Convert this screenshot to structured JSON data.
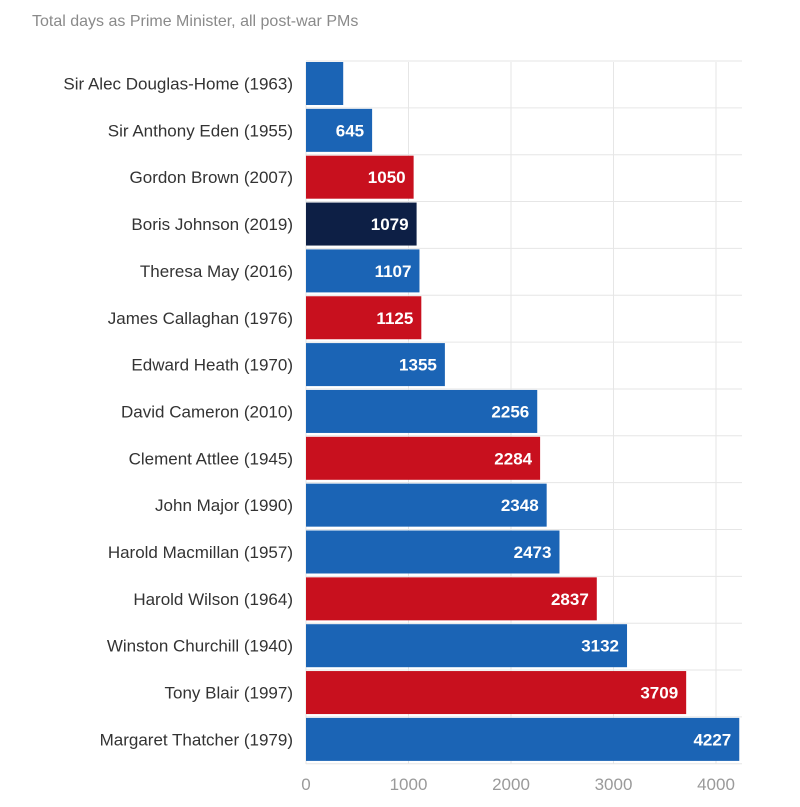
{
  "chart_data": {
    "type": "bar",
    "orientation": "horizontal",
    "title": "",
    "subtitle": "Total days as Prime Minister, all post-war PMs",
    "xlabel": "",
    "ylabel": "",
    "xlim": [
      0,
      4500
    ],
    "xticks": [
      0,
      1000,
      2000,
      3000,
      4000
    ],
    "grid": true,
    "colors": {
      "conservative": "#1b64b5",
      "labour": "#c8101e",
      "current": "#0d1f45"
    },
    "bars": [
      {
        "label": "Sir Alec Douglas-Home (1963)",
        "value": 363,
        "party": "conservative",
        "value_label": ""
      },
      {
        "label": "Sir Anthony Eden (1955)",
        "value": 645,
        "party": "conservative",
        "value_label": "645"
      },
      {
        "label": "Gordon Brown (2007)",
        "value": 1050,
        "party": "labour",
        "value_label": "1050"
      },
      {
        "label": "Boris Johnson (2019)",
        "value": 1079,
        "party": "current",
        "value_label": "1079"
      },
      {
        "label": "Theresa May (2016)",
        "value": 1107,
        "party": "conservative",
        "value_label": "1107"
      },
      {
        "label": "James Callaghan (1976)",
        "value": 1125,
        "party": "labour",
        "value_label": "1125"
      },
      {
        "label": "Edward Heath (1970)",
        "value": 1355,
        "party": "conservative",
        "value_label": "1355"
      },
      {
        "label": "David Cameron (2010)",
        "value": 2256,
        "party": "conservative",
        "value_label": "2256"
      },
      {
        "label": "Clement Attlee (1945)",
        "value": 2284,
        "party": "labour",
        "value_label": "2284"
      },
      {
        "label": "John Major (1990)",
        "value": 2348,
        "party": "conservative",
        "value_label": "2348"
      },
      {
        "label": "Harold Macmillan (1957)",
        "value": 2473,
        "party": "conservative",
        "value_label": "2473"
      },
      {
        "label": "Harold Wilson (1964)",
        "value": 2837,
        "party": "labour",
        "value_label": "2837"
      },
      {
        "label": "Winston Churchill (1940)",
        "value": 3132,
        "party": "conservative",
        "value_label": "3132"
      },
      {
        "label": "Tony Blair (1997)",
        "value": 3709,
        "party": "labour",
        "value_label": "3709"
      },
      {
        "label": "Margaret Thatcher (1979)",
        "value": 4227,
        "party": "conservative",
        "value_label": "4227"
      }
    ]
  }
}
